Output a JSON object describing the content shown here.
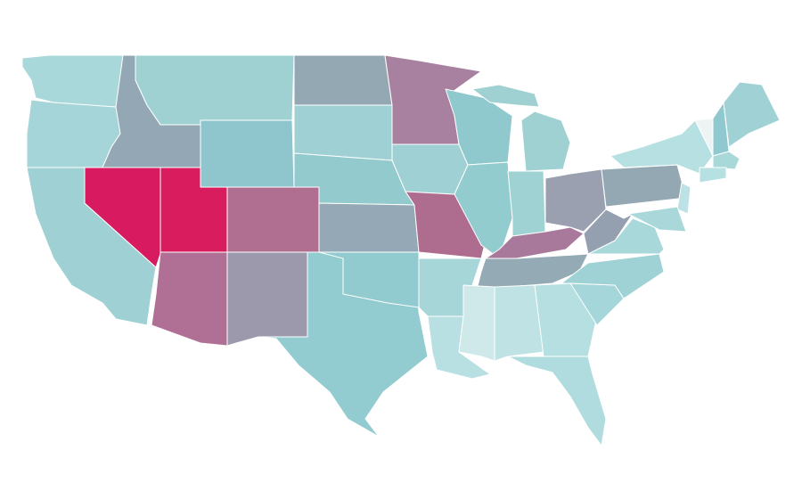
{
  "map": {
    "regions": [
      {
        "color": "#a9d8da"
      },
      {
        "color": "#a5d5d8"
      },
      {
        "color": "#9ed0d4"
      },
      {
        "color": "#d81b60"
      },
      {
        "color": "#93a8b4"
      },
      {
        "color": "#9fd1d3"
      },
      {
        "color": "#8fc6cd"
      },
      {
        "color": "#d81c5e"
      },
      {
        "color": "#b07095"
      },
      {
        "color": "#b06f91"
      },
      {
        "color": "#9b99ab"
      },
      {
        "color": "#92cbd0"
      },
      {
        "color": "#94a8b4"
      },
      {
        "color": "#9fd1d4"
      },
      {
        "color": "#93cace"
      },
      {
        "color": "#94a8b5"
      },
      {
        "color": "#92cbcf"
      },
      {
        "color": "#a7819f"
      },
      {
        "color": "#9fd0d3"
      },
      {
        "color": "#ae6d8e"
      },
      {
        "color": "#a6d6d8"
      },
      {
        "color": "#b8e0e2"
      },
      {
        "color": "#8fc8cd"
      },
      {
        "color": "#93cccf"
      },
      {
        "color": "#9fd1d2"
      },
      {
        "color": "#9fd2d3"
      },
      {
        "color": "#9aa0b0"
      },
      {
        "color": "#a9799c"
      },
      {
        "color": "#94abb6"
      },
      {
        "color": "#cfe9eb"
      },
      {
        "color": "#bfe3e5"
      },
      {
        "color": "#b5dfe1"
      },
      {
        "color": "#b0dcdf"
      },
      {
        "color": "#a5d6d9"
      },
      {
        "color": "#9fd2d5"
      },
      {
        "color": "#a9d8db"
      },
      {
        "color": "#94a0b0"
      },
      {
        "color": "#94a8b3"
      },
      {
        "color": "#b7e0e2"
      },
      {
        "color": "#eef3f4"
      },
      {
        "color": "#8fc8ce"
      },
      {
        "color": "#9fd1d5"
      },
      {
        "color": "#a9d8d9"
      },
      {
        "color": "#b7e0e3"
      },
      {
        "color": "#bde2e5"
      },
      {
        "color": "#a9d7da"
      }
    ]
  }
}
